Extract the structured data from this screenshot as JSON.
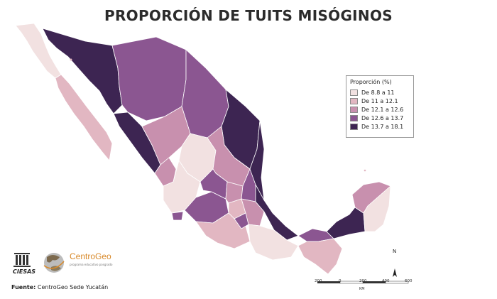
{
  "title": "PROPORCIÓN DE TUITS MISÓGINOS",
  "legend": {
    "title": "Proporción (%)",
    "items": [
      {
        "label": "De 8.8 a 11",
        "color": "#f2e1e1"
      },
      {
        "label": "De 11 a 12.1",
        "color": "#e2b7c2"
      },
      {
        "label": "De 12.1 a 12.6",
        "color": "#c890ae"
      },
      {
        "label": "De 12.6 a 13.7",
        "color": "#8b5691"
      },
      {
        "label": "De 13.7 a 18.1",
        "color": "#3d2552"
      }
    ]
  },
  "source": {
    "label": "Fuente:",
    "text": "CentroGeo Sede Yucatán"
  },
  "logos": {
    "ciesas": "CIESAS",
    "centrogeo": "CentroGeo",
    "centrogeo_sub": "programa educativo posgrado"
  },
  "scale_bar": {
    "ticks": [
      "200",
      "0",
      "200",
      "400",
      "600"
    ],
    "unit": "KM"
  },
  "north_arrow": "N"
}
